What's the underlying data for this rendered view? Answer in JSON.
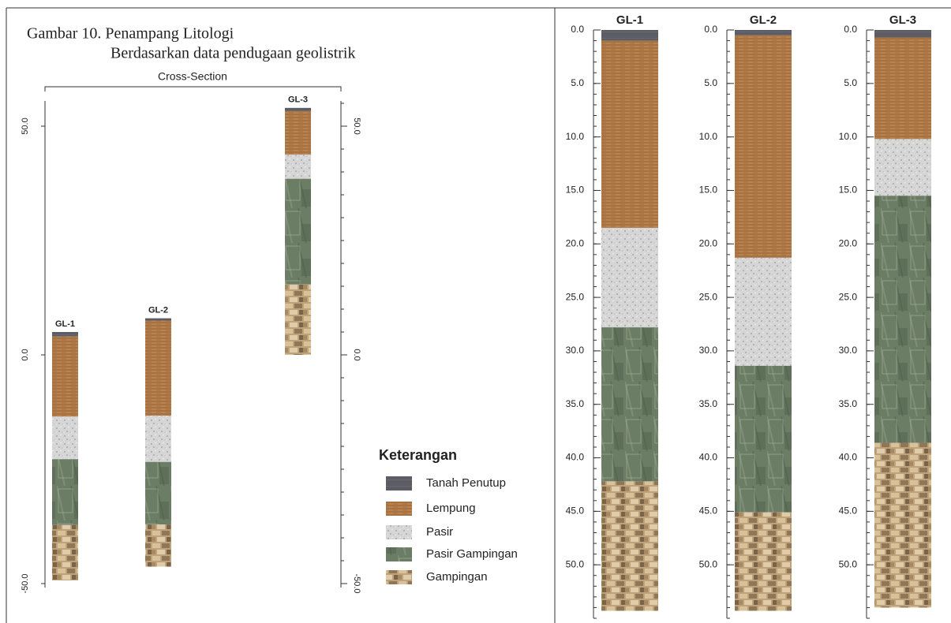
{
  "title": {
    "line1": "Gambar 10. Penampang Litologi",
    "line2": "Berdasarkan data pendugaan geolistrik"
  },
  "legend": {
    "title": "Keterangan",
    "items": [
      {
        "name": "Tanah Penutup",
        "color": "#5c5c64"
      },
      {
        "name": "Lempung",
        "color": "#b07a48"
      },
      {
        "name": "Pasir",
        "color": "#d6d6d6"
      },
      {
        "name": "Pasir Gampingan",
        "color": "#6c7d66"
      },
      {
        "name": "Gampingan",
        "color": "#bda27a"
      }
    ]
  },
  "cross_section": {
    "label": "Cross-Section",
    "ylim": [
      -50,
      55
    ],
    "yticks": [
      {
        "value": 50,
        "label": "50.0"
      },
      {
        "value": 0,
        "label": "0.0"
      },
      {
        "value": -50,
        "label": "-50.0"
      }
    ],
    "wells": [
      {
        "name": "GL-1",
        "elevation": 5
      },
      {
        "name": "GL-2",
        "elevation": 8
      },
      {
        "name": "GL-3",
        "elevation": 54
      }
    ]
  },
  "logs": {
    "ylim": [
      0,
      55
    ],
    "yticks": [
      {
        "value": 0,
        "label": "0.0"
      },
      {
        "value": 5,
        "label": "5.0"
      },
      {
        "value": 10,
        "label": "10.0"
      },
      {
        "value": 15,
        "label": "15.0"
      },
      {
        "value": 20,
        "label": "20.0"
      },
      {
        "value": 25,
        "label": "25.0"
      },
      {
        "value": 30,
        "label": "30.0"
      },
      {
        "value": 35,
        "label": "35.0"
      },
      {
        "value": 40,
        "label": "40.0"
      },
      {
        "value": 45,
        "label": "45.0"
      },
      {
        "value": 50,
        "label": "50.0"
      }
    ],
    "wells": [
      {
        "name": "GL-1",
        "boundaries": [
          0,
          1,
          18.5,
          27.8,
          42.2,
          54.3
        ]
      },
      {
        "name": "GL-2",
        "boundaries": [
          0,
          0.5,
          21.3,
          31.4,
          45.1,
          54.3
        ]
      },
      {
        "name": "GL-3",
        "boundaries": [
          0,
          0.7,
          10.2,
          15.5,
          38.6,
          54
        ]
      }
    ]
  }
}
